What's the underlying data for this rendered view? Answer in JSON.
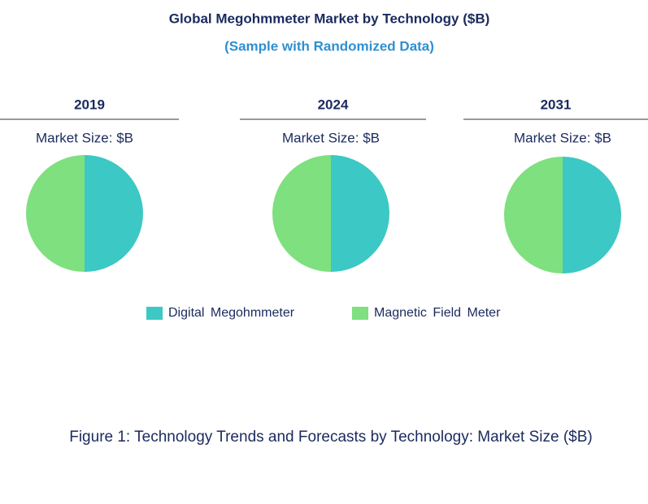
{
  "header": {
    "title": "Global Megohmmeter Market by Technology ($B)",
    "subtitle": "(Sample with Randomized Data)"
  },
  "caption": "Figure 1: Technology Trends and Forecasts by Technology: Market Size ($B)",
  "chart_data": [
    {
      "type": "pie",
      "title": "2019",
      "subtitle": "Market Size: $B",
      "categories": [
        "Digital Megohmmeter",
        "Magnetic Field Meter"
      ],
      "values": [
        50,
        50
      ],
      "colors": [
        "#3cc8c4",
        "#7ee07e"
      ]
    },
    {
      "type": "pie",
      "title": "2024",
      "subtitle": "Market Size: $B",
      "categories": [
        "Digital Megohmmeter",
        "Magnetic Field Meter"
      ],
      "values": [
        50,
        50
      ],
      "colors": [
        "#3cc8c4",
        "#7ee07e"
      ]
    },
    {
      "type": "pie",
      "title": "2031",
      "subtitle": "Market Size: $B",
      "categories": [
        "Digital Megohmmeter",
        "Magnetic Field Meter"
      ],
      "values": [
        50,
        50
      ],
      "colors": [
        "#3cc8c4",
        "#7ee07e"
      ]
    }
  ]
}
